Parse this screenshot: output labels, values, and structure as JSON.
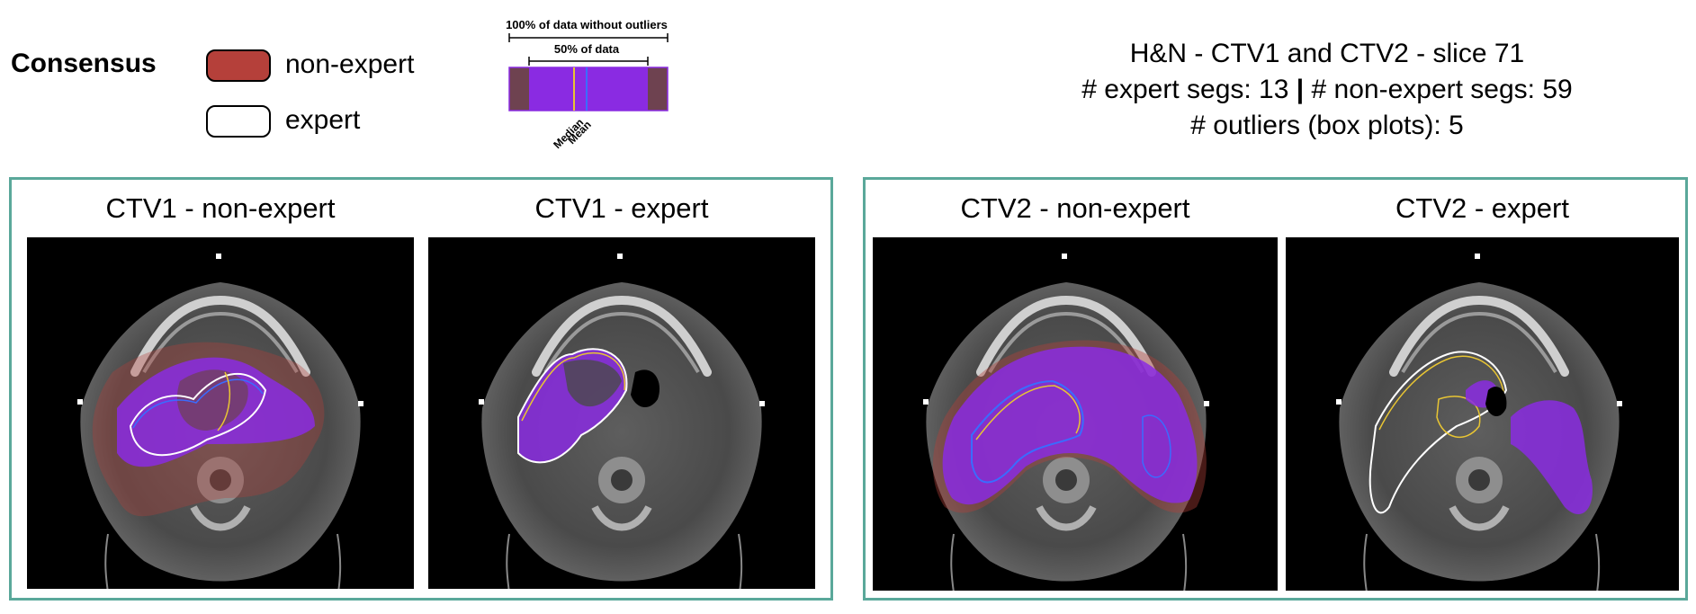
{
  "legend": {
    "title": "Consensus",
    "nonexpert_label": "non-expert",
    "expert_label": "expert",
    "nonexpert_color": "#b5403a",
    "expert_color": "#ffffff"
  },
  "boxplot_legend": {
    "full_range_label": "100% of data without outliers",
    "iqr_label": "50% of data",
    "median_label": "Median",
    "mean_label": "Mean",
    "box_color": "#8a2be2",
    "median_color": "#e8c533",
    "mean_color": "#3a6cff"
  },
  "header": {
    "line1": "H&N - CTV1 and CTV2 - slice 71",
    "line2_part1": "# expert segs: 13",
    "line2_sep": "|",
    "line2_part2": "# non-expert segs: 59",
    "line3": "# outliers (box plots): 5"
  },
  "panels": [
    {
      "title": "CTV1 - non-expert",
      "overlay": "nonexpert"
    },
    {
      "title": "CTV1 - expert",
      "overlay": "expert"
    },
    {
      "title": "CTV2 - non-expert",
      "overlay": "nonexpert"
    },
    {
      "title": "CTV2 - expert",
      "overlay": "expert"
    }
  ]
}
